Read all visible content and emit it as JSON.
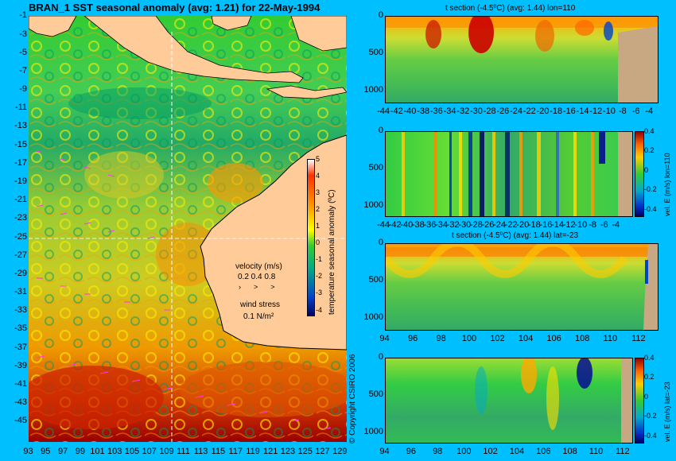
{
  "main_title": "BRAN_1 SST seasonal anomaly (avg: 1.21) for 22-May-1994",
  "copyright": "© Copyright CSIRO 2006",
  "colors": {
    "background": "#00bfff",
    "land": "#ffcc99",
    "land_section": "#c8a882"
  },
  "chart_data": [
    {
      "type": "heatmap",
      "title": "BRAN_1 SST seasonal anomaly (avg: 1.21) for 22-May-1994",
      "x_ticks": [
        "93",
        "95",
        "97",
        "99",
        "101",
        "103",
        "105",
        "107",
        "109",
        "111",
        "113",
        "115",
        "117",
        "119",
        "121",
        "123",
        "125",
        "127",
        "129"
      ],
      "y_ticks": [
        "-1",
        "-3",
        "-5",
        "-7",
        "-9",
        "-11",
        "-13",
        "-15",
        "-17",
        "-19",
        "-21",
        "-23",
        "-25",
        "-27",
        "-29",
        "-31",
        "-33",
        "-35",
        "-37",
        "-39",
        "-41",
        "-43",
        "-45"
      ],
      "xlim": [
        93,
        129.5
      ],
      "ylim": [
        -45,
        0
      ],
      "colorbar": {
        "label": "temperature seasonal anomaly (ºC)",
        "ticks": [
          "5",
          "4",
          "3",
          "2",
          "1",
          "0",
          "-1",
          "-2",
          "-3",
          "-4"
        ],
        "range": [
          -4,
          5
        ]
      },
      "annotations": {
        "velocity_label": "velocity (m/s)",
        "velocity_scale": "0.2 0.4 0.8",
        "wind_label": "wind stress",
        "wind_scale": "0.1 N/m²"
      }
    },
    {
      "type": "heatmap",
      "title": "t section (-4.5ºC) (avg: 1.44) lon=110",
      "x_ticks": [
        "-44",
        "-42",
        "-40",
        "-38",
        "-36",
        "-34",
        "-32",
        "-30",
        "-28",
        "-26",
        "-24",
        "-22",
        "-20",
        "-18",
        "-16",
        "-14",
        "-12",
        "-10",
        "-8",
        "-6",
        "-4"
      ],
      "y_ticks": [
        "0",
        "500",
        "1000"
      ],
      "xlim": [
        -45,
        -3
      ],
      "ylim": [
        1050,
        0
      ]
    },
    {
      "type": "heatmap",
      "title": "",
      "x_ticks": [
        "-44",
        "-42",
        "-40",
        "-38",
        "-36",
        "-34",
        "-32",
        "-30",
        "-28",
        "-26",
        "-24",
        "-22",
        "-20",
        "-18",
        "-16",
        "-14",
        "-12",
        "-10",
        "-8",
        "-6",
        "-4"
      ],
      "y_ticks": [
        "0",
        "500",
        "1000"
      ],
      "xlim": [
        -45,
        -3
      ],
      "ylim": [
        1050,
        0
      ],
      "colorbar": {
        "label": "vel. E (m/s) lon=110",
        "ticks": [
          "0.4",
          "0.2",
          "0",
          "-0.2",
          "-0.4"
        ],
        "range": [
          -0.4,
          0.4
        ]
      }
    },
    {
      "type": "heatmap",
      "title": "t section (-4.5ºC) (avg: 1.44) lat=-23",
      "x_ticks": [
        "94",
        "96",
        "98",
        "100",
        "102",
        "104",
        "106",
        "108",
        "110",
        "112"
      ],
      "y_ticks": [
        "0",
        "500",
        "1000"
      ],
      "xlim": [
        93,
        113.8
      ],
      "ylim": [
        1050,
        0
      ]
    },
    {
      "type": "heatmap",
      "title": "",
      "x_ticks": [
        "94",
        "96",
        "98",
        "100",
        "102",
        "104",
        "106",
        "108",
        "110",
        "112"
      ],
      "y_ticks": [
        "0",
        "500",
        "1000"
      ],
      "xlim": [
        93,
        113.8
      ],
      "ylim": [
        1050,
        0
      ],
      "colorbar": {
        "label": "vel. E (m/s) lat=-23",
        "ticks": [
          "0.4",
          "0.2",
          "0",
          "-0.2",
          "-0.4"
        ],
        "range": [
          -0.4,
          0.4
        ]
      }
    }
  ]
}
